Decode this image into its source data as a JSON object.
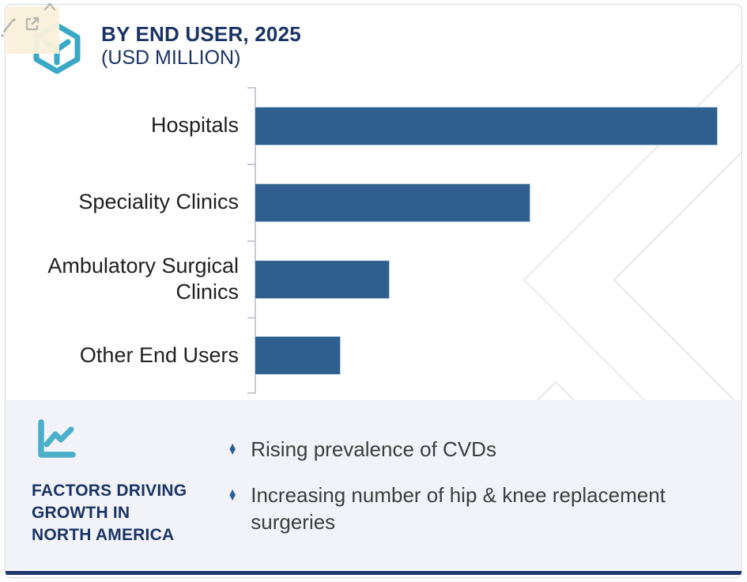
{
  "header": {
    "logo_icon": "hexagon-y-logo",
    "title": "BY END USER, 2025",
    "subtitle": "(USD MILLION)"
  },
  "chart_data": {
    "type": "bar",
    "orientation": "horizontal",
    "title": "BY END USER, 2025",
    "subtitle": "(USD MILLION)",
    "categories": [
      "Hospitals",
      "Speciality Clinics",
      "Ambulatory Surgical Clinics",
      "Other End Users"
    ],
    "values_pct_of_max": [
      100,
      59.5,
      29,
      18.5
    ],
    "value_labels_shown": false,
    "axis_tick_labels_shown": false,
    "legend": "none",
    "grid": false,
    "bar_color": "#2e5f8e",
    "axis_color": "#c7cbd0"
  },
  "factors_panel": {
    "icon": "line-chart-icon",
    "heading_lines": [
      "FACTORS DRIVING",
      "GROWTH IN",
      "NORTH AMERICA"
    ],
    "bullet_marker": "♦",
    "bullets": [
      "Rising prevalence of CVDs",
      "Increasing number of hip & knee replacement surgeries"
    ]
  },
  "colors": {
    "brand_teal": "#3aa9c7",
    "navy": "#1a3464",
    "bar_blue": "#2e5f8e",
    "bullet_blue": "#2d5e94",
    "panel_bg": "#f0f3f8",
    "bottom_strip": "#20386a",
    "watermark": "#ececec"
  }
}
